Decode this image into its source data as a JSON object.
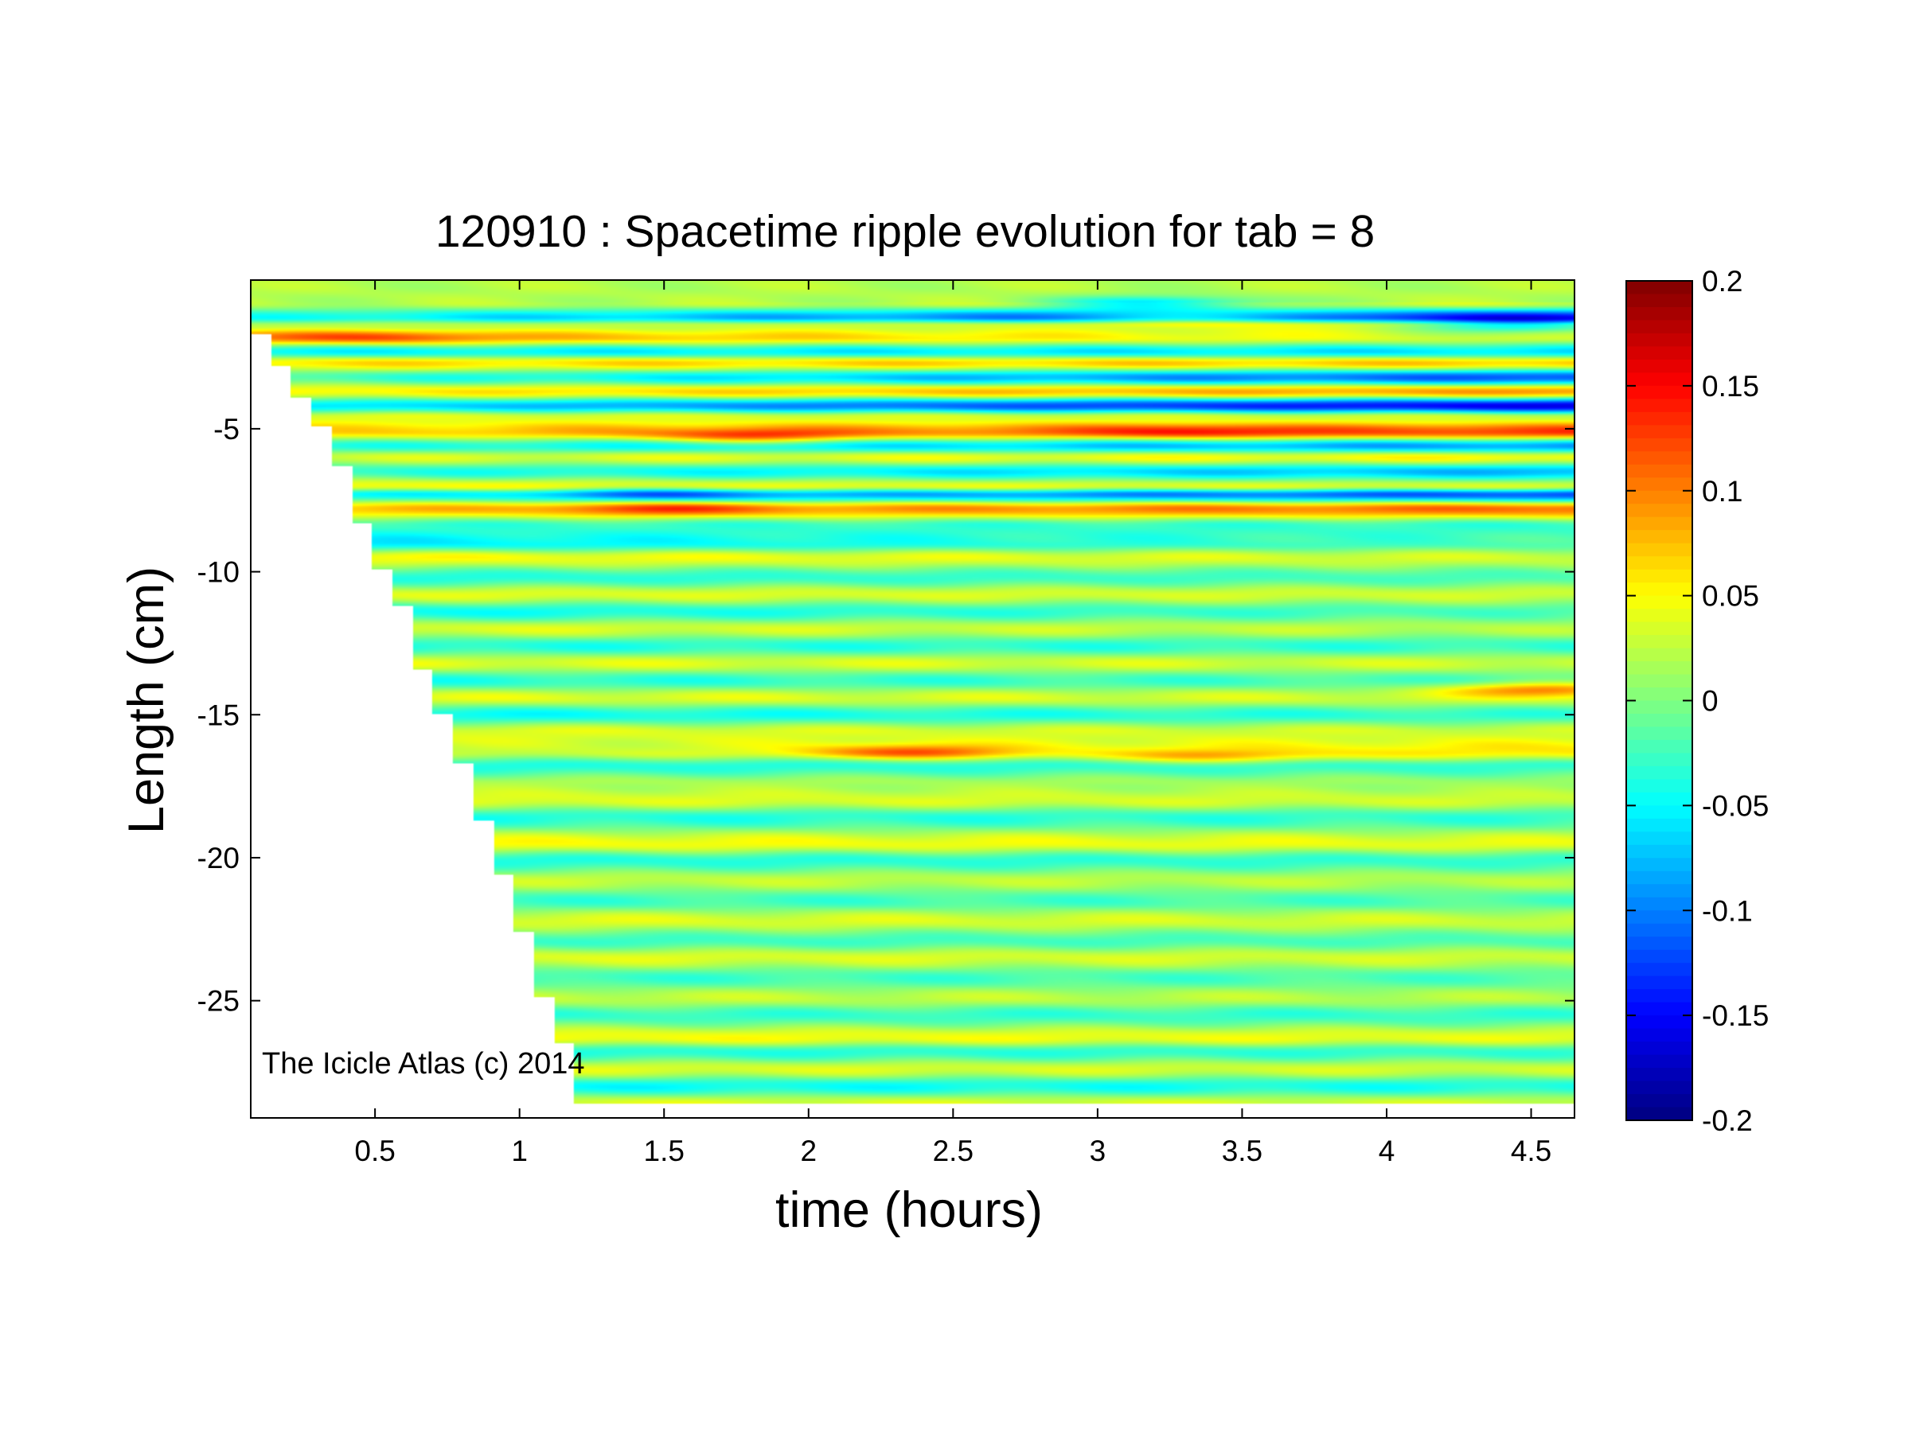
{
  "chart_data": {
    "type": "heatmap",
    "title": "120910 : Spacetime ripple evolution for tab = 8",
    "xlabel": "time (hours)",
    "ylabel": "Length (cm)",
    "xlim": [
      0.07,
      4.65
    ],
    "ylim": [
      -29.1,
      0.2
    ],
    "x_ticks": [
      0.5,
      1,
      1.5,
      2,
      2.5,
      3,
      3.5,
      4,
      4.5
    ],
    "x_tick_labels": [
      "0.5",
      "1",
      "1.5",
      "2",
      "2.5",
      "3",
      "3.5",
      "4",
      "4.5"
    ],
    "y_ticks": [
      -5,
      -10,
      -15,
      -20,
      -25
    ],
    "y_tick_labels": [
      "-5",
      "-10",
      "-15",
      "-20",
      "-25"
    ],
    "colormap": "jet",
    "clim": [
      -0.2,
      0.2
    ],
    "colorbar_ticks": [
      0.2,
      0.15,
      0.1,
      0.05,
      0,
      -0.05,
      -0.1,
      -0.15,
      -0.2
    ],
    "colorbar_tick_labels": [
      "0.2",
      "0.15",
      "0.1",
      "0.05",
      "0",
      "-0.05",
      "-0.1",
      "-0.15",
      "-0.2"
    ],
    "grid": false,
    "annotation": "The Icicle Atlas (c) 2014",
    "data_edge": {
      "time_hours": [
        0.07,
        0.14,
        0.21,
        0.28,
        0.35,
        0.42,
        0.49,
        0.56,
        0.63,
        0.7,
        0.77,
        0.84,
        0.91,
        0.98,
        1.05,
        1.12,
        1.19
      ],
      "lowest_length_cm": [
        -1.7,
        -2.8,
        -3.9,
        -4.9,
        -6.3,
        -8.3,
        -9.9,
        -11.2,
        -13.4,
        -15.0,
        -16.7,
        -18.7,
        -20.6,
        -22.6,
        -24.9,
        -26.5,
        -28.6
      ]
    },
    "bands": [
      {
        "y": -0.6,
        "a": 0.02,
        "b": 0.03
      },
      {
        "y": -1.1,
        "a": -0.04,
        "b": -0.14
      },
      {
        "y": -1.4,
        "a": 0.02,
        "b": 0.04
      },
      {
        "y": -1.8,
        "a": 0.09,
        "b": 0.03
      },
      {
        "y": -2.3,
        "a": -0.05,
        "b": -0.06
      },
      {
        "y": -2.7,
        "a": 0.06,
        "b": 0.07
      },
      {
        "y": -3.2,
        "a": -0.02,
        "b": -0.12
      },
      {
        "y": -3.7,
        "a": 0.05,
        "b": 0.09
      },
      {
        "y": -4.2,
        "a": -0.05,
        "b": -0.16
      },
      {
        "y": -4.6,
        "a": 0.04,
        "b": 0.03
      },
      {
        "y": -5.1,
        "a": 0.06,
        "b": 0.13
      },
      {
        "y": -5.6,
        "a": -0.03,
        "b": -0.09
      },
      {
        "y": -6.0,
        "a": 0.03,
        "b": 0.05
      },
      {
        "y": -6.5,
        "a": -0.03,
        "b": -0.08
      },
      {
        "y": -7.0,
        "a": 0.05,
        "b": 0.03
      },
      {
        "y": -7.3,
        "a": -0.04,
        "b": -0.12
      },
      {
        "y": -7.8,
        "a": 0.07,
        "b": 0.11
      },
      {
        "y": -8.4,
        "a": -0.03,
        "b": -0.03
      },
      {
        "y": -9.0,
        "a": -0.06,
        "b": -0.02
      },
      {
        "y": -9.5,
        "a": 0.05,
        "b": 0.03
      },
      {
        "y": -10.2,
        "a": -0.04,
        "b": -0.02
      },
      {
        "y": -10.8,
        "a": 0.04,
        "b": 0.03
      },
      {
        "y": -11.4,
        "a": -0.05,
        "b": -0.02
      },
      {
        "y": -12.0,
        "a": 0.04,
        "b": 0.02
      },
      {
        "y": -12.6,
        "a": -0.04,
        "b": -0.03
      },
      {
        "y": -13.2,
        "a": 0.04,
        "b": 0.03
      },
      {
        "y": -13.8,
        "a": -0.04,
        "b": -0.02
      },
      {
        "y": -14.4,
        "a": 0.04,
        "b": 0.03
      },
      {
        "y": -15.0,
        "a": -0.05,
        "b": -0.03
      },
      {
        "y": -15.6,
        "a": 0.04,
        "b": 0.03
      },
      {
        "y": -16.3,
        "a": 0.02,
        "b": 0.06
      },
      {
        "y": -16.8,
        "a": -0.04,
        "b": -0.03
      },
      {
        "y": -17.4,
        "a": 0.02,
        "b": 0.01
      },
      {
        "y": -18.0,
        "a": 0.04,
        "b": 0.03
      },
      {
        "y": -18.6,
        "a": -0.04,
        "b": -0.03
      },
      {
        "y": -19.5,
        "a": 0.05,
        "b": 0.04
      },
      {
        "y": -20.1,
        "a": -0.04,
        "b": -0.03
      },
      {
        "y": -20.8,
        "a": 0.03,
        "b": 0.02
      },
      {
        "y": -21.5,
        "a": -0.03,
        "b": -0.02
      },
      {
        "y": -22.2,
        "a": 0.04,
        "b": 0.03
      },
      {
        "y": -22.9,
        "a": -0.03,
        "b": -0.02
      },
      {
        "y": -23.5,
        "a": 0.04,
        "b": 0.03
      },
      {
        "y": -24.2,
        "a": -0.03,
        "b": -0.02
      },
      {
        "y": -24.9,
        "a": 0.03,
        "b": 0.02
      },
      {
        "y": -25.5,
        "a": -0.03,
        "b": -0.03
      },
      {
        "y": -26.3,
        "a": 0.05,
        "b": 0.04
      },
      {
        "y": -26.8,
        "a": -0.04,
        "b": -0.03
      },
      {
        "y": -27.4,
        "a": 0.04,
        "b": 0.03
      },
      {
        "y": -28.0,
        "a": -0.05,
        "b": -0.04
      },
      {
        "y": -28.6,
        "a": 0.04,
        "b": 0.03
      }
    ],
    "features": [
      {
        "x": 1.8,
        "y": -5.3,
        "v": 0.07
      },
      {
        "x": 1.5,
        "y": -7.8,
        "v": 0.05
      },
      {
        "x": 1.5,
        "y": -7.3,
        "v": -0.05
      },
      {
        "x": 2.35,
        "y": -16.3,
        "v": 0.08
      },
      {
        "x": 3.2,
        "y": -0.6,
        "v": -0.08
      },
      {
        "x": 3.4,
        "y": -1.1,
        "v": 0.06
      },
      {
        "x": 4.45,
        "y": -1.4,
        "v": -0.09
      },
      {
        "x": 4.55,
        "y": -14.1,
        "v": 0.09
      },
      {
        "x": 3.4,
        "y": -16.5,
        "v": 0.05
      },
      {
        "x": 3.3,
        "y": -5.1,
        "v": 0.04
      },
      {
        "x": 0.5,
        "y": -1.8,
        "v": 0.04
      }
    ]
  }
}
